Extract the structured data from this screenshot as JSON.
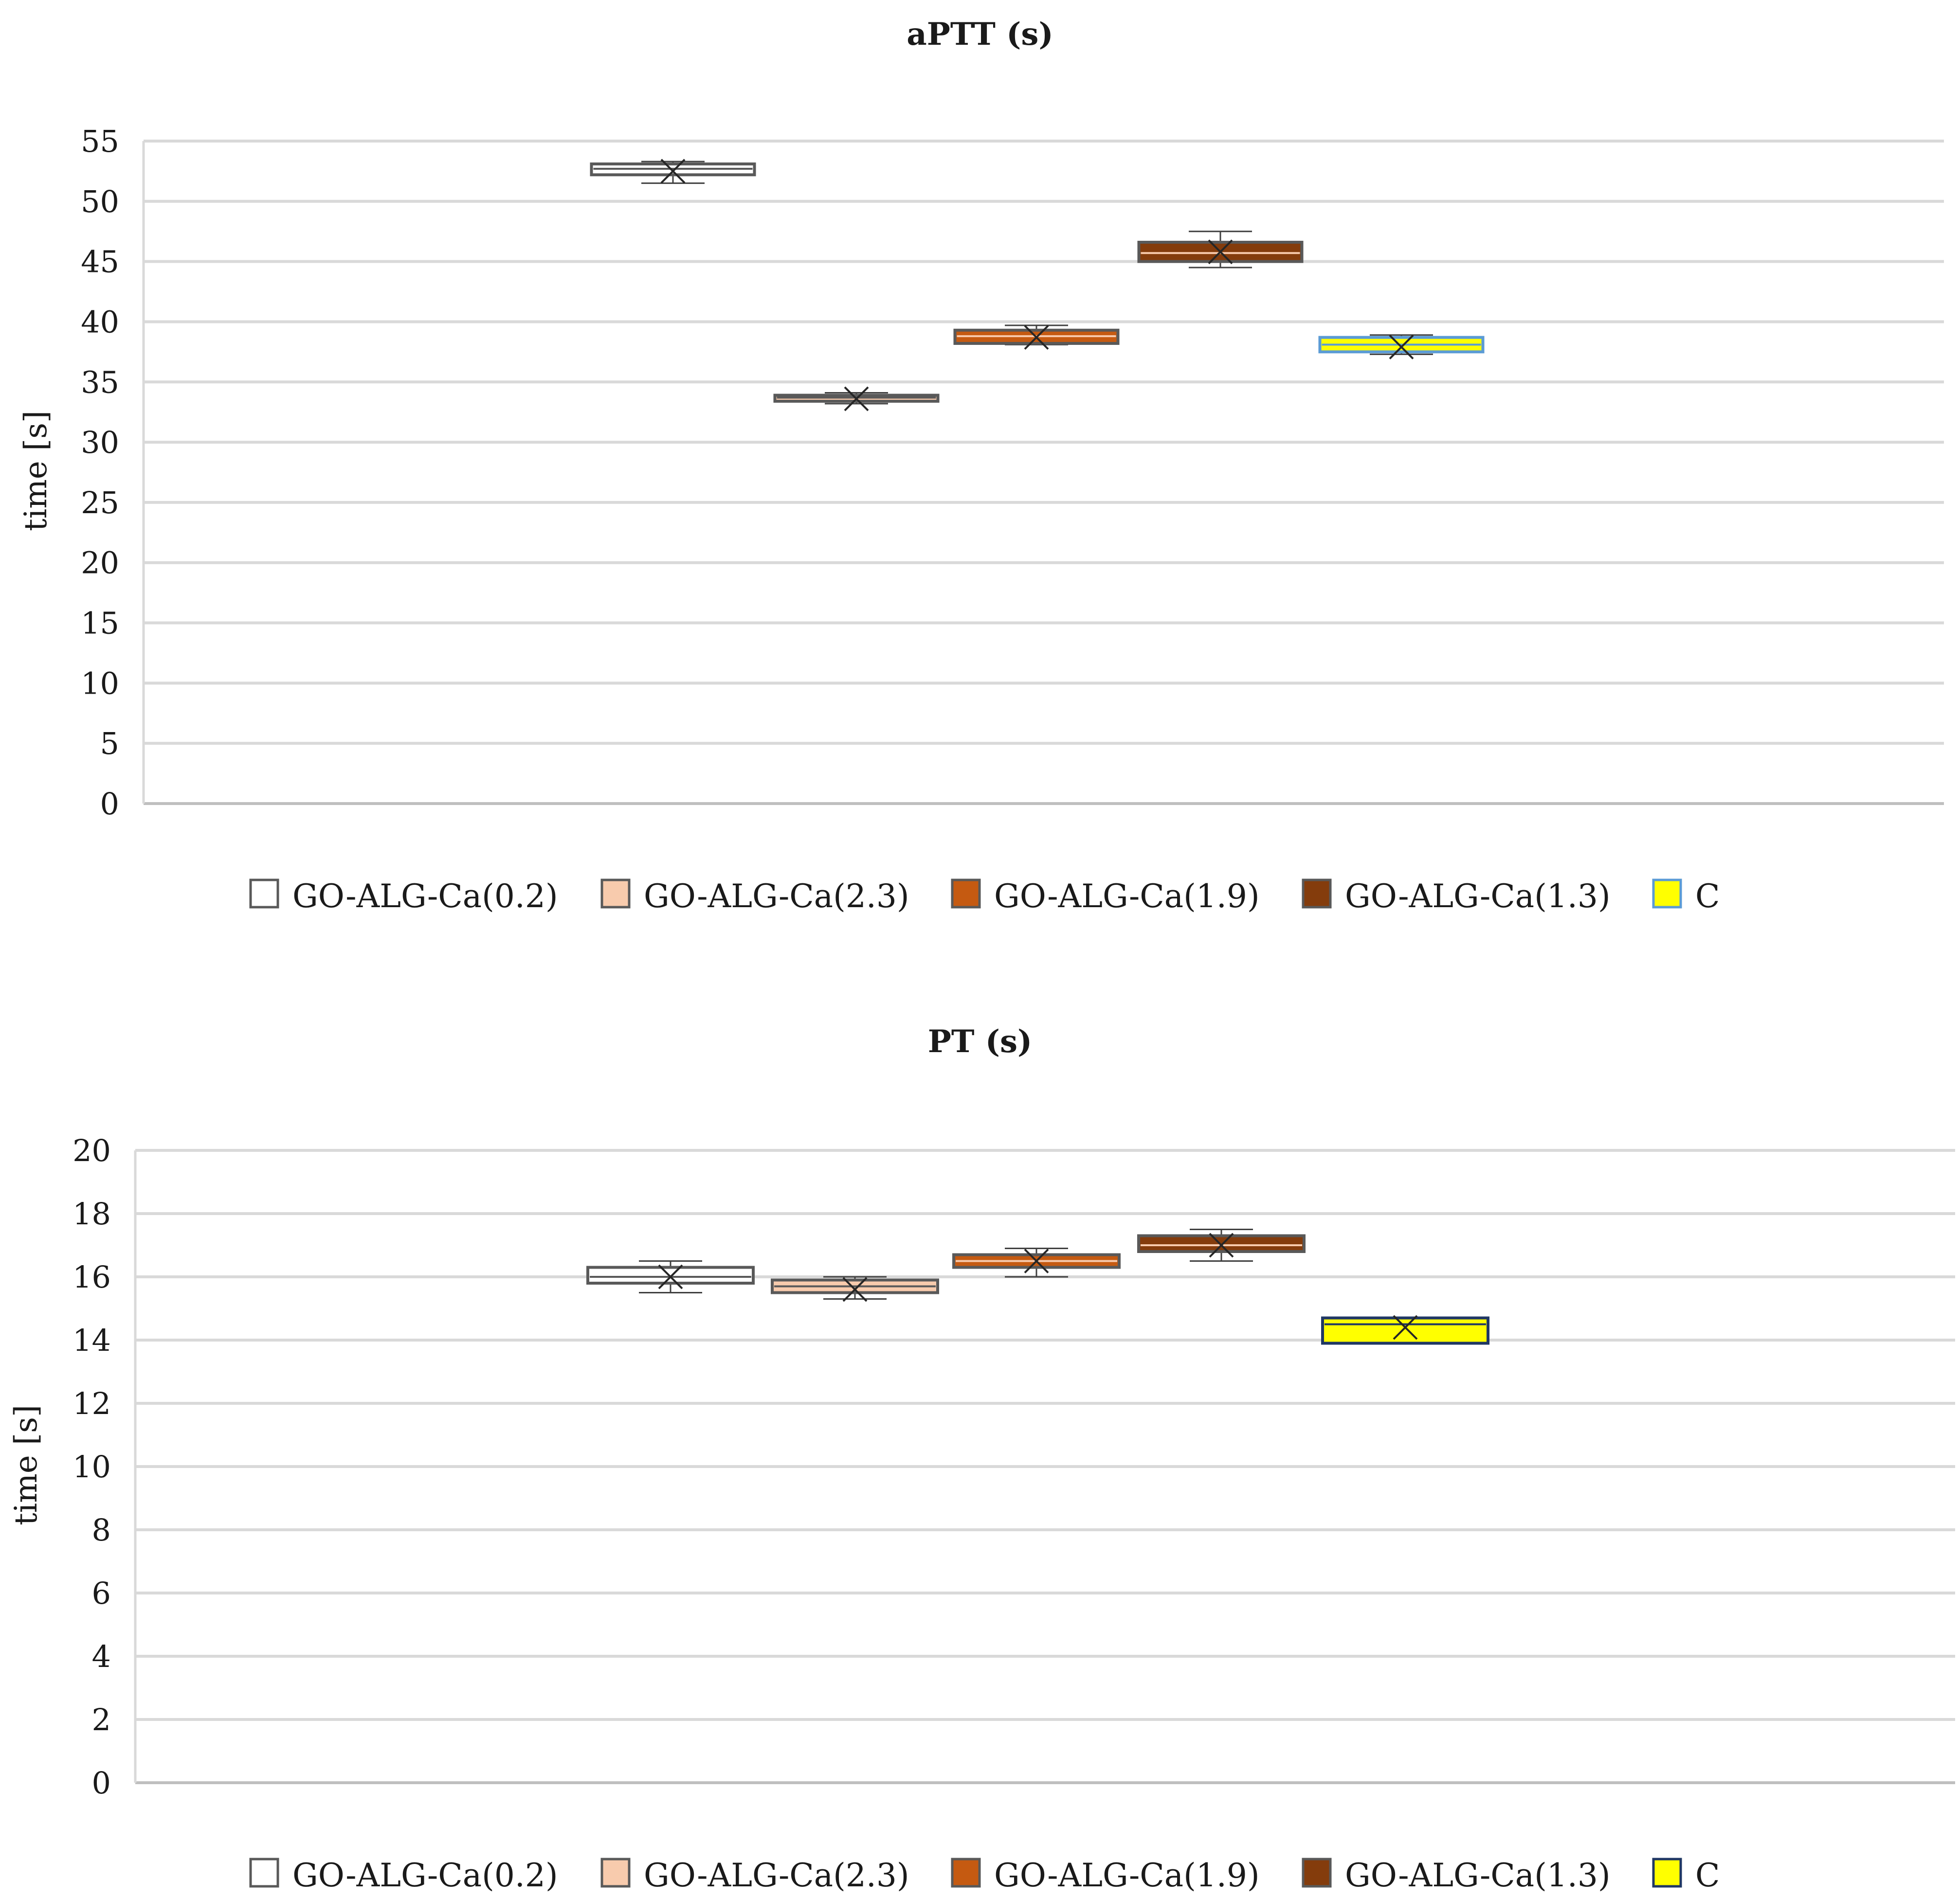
{
  "chart_data": [
    {
      "type": "box",
      "title": "aPTT (s)",
      "ylabel": "time [s]",
      "xlabel": "",
      "ylim": [
        0,
        55
      ],
      "yticks": [
        0,
        5,
        10,
        15,
        20,
        25,
        30,
        35,
        40,
        45,
        50,
        55
      ],
      "grid": true,
      "legend_position": "bottom",
      "series": [
        {
          "name": "GO-ALG-Ca(0.2)",
          "fill": "#ffffff",
          "stroke": "#595959",
          "median_color": "#595959",
          "min": 51.5,
          "q1": 52.2,
          "median": 52.7,
          "q3": 53.1,
          "max": 53.3,
          "mean": 52.5
        },
        {
          "name": "GO-ALG-Ca(2.3)",
          "fill": "#f8cbad",
          "stroke": "#595959",
          "median_color": "#595959",
          "min": 33.2,
          "q1": 33.4,
          "median": 33.7,
          "q3": 33.9,
          "max": 34.1,
          "mean": 33.6
        },
        {
          "name": "GO-ALG-Ca(1.9)",
          "fill": "#c55a11",
          "stroke": "#595959",
          "median_color": "#f8cbad",
          "min": 38.1,
          "q1": 38.2,
          "median": 38.8,
          "q3": 39.3,
          "max": 39.7,
          "mean": 38.7
        },
        {
          "name": "GO-ALG-Ca(1.3)",
          "fill": "#843c0c",
          "stroke": "#595959",
          "median_color": "#f8cbad",
          "min": 44.5,
          "q1": 45.0,
          "median": 45.7,
          "q3": 46.6,
          "max": 47.5,
          "mean": 45.8
        },
        {
          "name": "C",
          "fill": "#ffff00",
          "stroke": "#5b9bd5",
          "median_color": "#5b9bd5",
          "min": 37.3,
          "q1": 37.5,
          "median": 38.1,
          "q3": 38.7,
          "max": 38.9,
          "mean": 37.9
        }
      ]
    },
    {
      "type": "box",
      "title": "PT (s)",
      "ylabel": "time [s]",
      "xlabel": "",
      "ylim": [
        0,
        20
      ],
      "yticks": [
        0,
        2,
        4,
        6,
        8,
        10,
        12,
        14,
        16,
        18,
        20
      ],
      "grid": true,
      "legend_position": "bottom",
      "series": [
        {
          "name": "GO-ALG-Ca(0.2)",
          "fill": "#ffffff",
          "stroke": "#595959",
          "median_color": "#595959",
          "min": 15.5,
          "q1": 15.8,
          "median": 16.0,
          "q3": 16.3,
          "max": 16.5,
          "mean": 16.0
        },
        {
          "name": "GO-ALG-Ca(2.3)",
          "fill": "#f8cbad",
          "stroke": "#595959",
          "median_color": "#595959",
          "min": 15.3,
          "q1": 15.5,
          "median": 15.7,
          "q3": 15.9,
          "max": 16.0,
          "mean": 15.6
        },
        {
          "name": "GO-ALG-Ca(1.9)",
          "fill": "#c55a11",
          "stroke": "#595959",
          "median_color": "#f8cbad",
          "min": 16.0,
          "q1": 16.3,
          "median": 16.5,
          "q3": 16.7,
          "max": 16.9,
          "mean": 16.5
        },
        {
          "name": "GO-ALG-Ca(1.3)",
          "fill": "#843c0c",
          "stroke": "#595959",
          "median_color": "#f8cbad",
          "min": 16.5,
          "q1": 16.8,
          "median": 17.0,
          "q3": 17.3,
          "max": 17.5,
          "mean": 17.0
        },
        {
          "name": "C",
          "fill": "#ffff00",
          "stroke": "#203864",
          "median_color": "#203864",
          "min": 13.9,
          "q1": 13.9,
          "median": 14.5,
          "q3": 14.7,
          "max": 14.7,
          "mean": 14.4
        }
      ]
    }
  ]
}
